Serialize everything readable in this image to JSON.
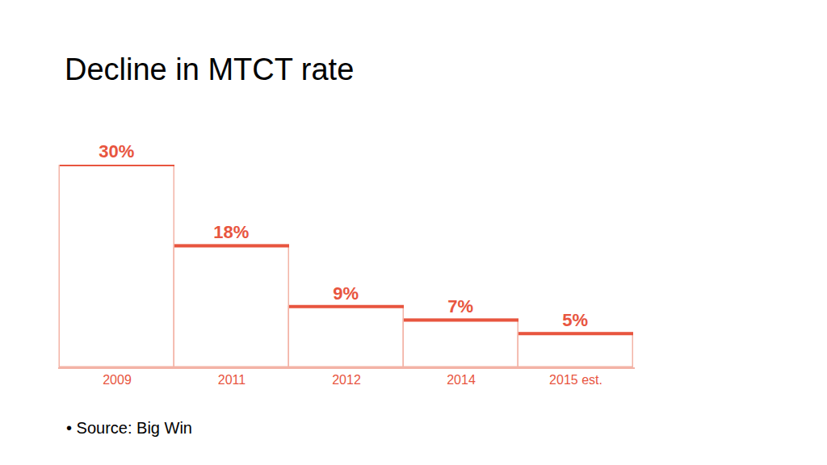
{
  "chart_data": {
    "type": "bar",
    "title": "Decline in MTCT rate",
    "categories": [
      "2009",
      "2011",
      "2012",
      "2014",
      "2015 est."
    ],
    "values": [
      30,
      18,
      9,
      7,
      5
    ],
    "value_labels": [
      "30%",
      "18%",
      "9%",
      "7%",
      "5%"
    ],
    "data_labels": true,
    "color": "#e8553f",
    "ylim": [
      0,
      30
    ],
    "tick_labels": "x",
    "grid": false,
    "annotations": [
      "• Source: Big Win"
    ]
  }
}
